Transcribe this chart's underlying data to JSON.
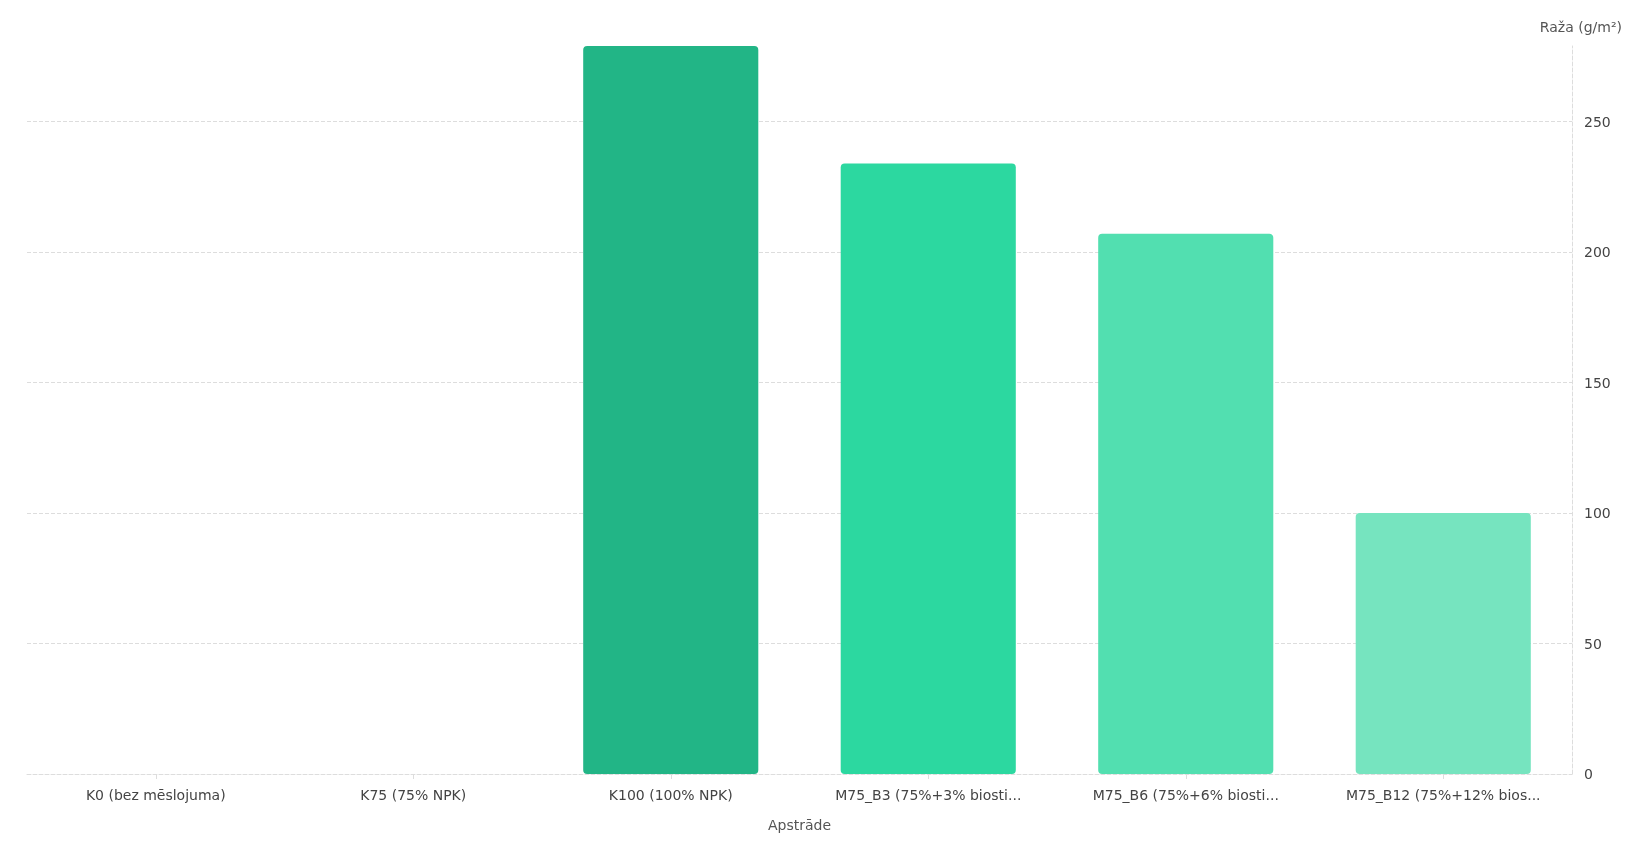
{
  "chart_data": {
    "type": "bar",
    "xlabel": "Apstrāde",
    "ylabel": "Raža (g/m²)",
    "categories": [
      "K0 (bez mēslojuma)",
      "K75 (75% NPK)",
      "K100 (100% NPK)",
      "M75_B3 (75%+3% biosti...",
      "M75_B6 (75%+6% biosti...",
      "M75_B12 (75%+12% bios..."
    ],
    "values": [
      null,
      null,
      279,
      234,
      207,
      100
    ],
    "colors": [
      "#22b586",
      "#22b586",
      "#22b586",
      "#2cd8a0",
      "#52dfb0",
      "#76e4bf"
    ],
    "ylim": [
      0,
      279
    ],
    "yticks": [
      0,
      50,
      100,
      150,
      200,
      250
    ],
    "grid": "y"
  }
}
